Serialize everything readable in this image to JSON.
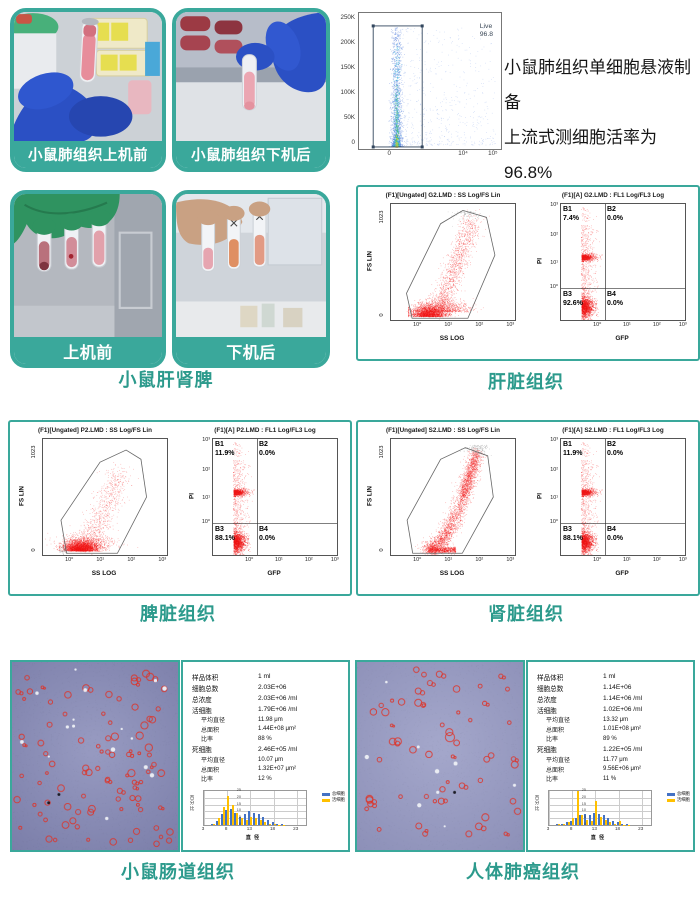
{
  "colors": {
    "teal": "#3aa89b",
    "caption_text": "#2c9a8c",
    "flow_red": "#f01414",
    "hist_total_blue": "#4472c4",
    "hist_live_orange": "#ffc000"
  },
  "header_row": {
    "photo_before_label": "小鼠肺组织上机前",
    "photo_after_label": "小鼠肺组织下机后",
    "note_line1": "小鼠肺组织单细胞悬液制备",
    "note_line2": "上流式测细胞活率为96.8%",
    "viability_plot": {
      "gate_name": "Live",
      "gate_value": "96.8",
      "yticks": [
        "250K",
        "200K",
        "150K",
        "100K",
        "50K",
        "0"
      ],
      "xticks": [
        "0",
        "10⁴",
        "10⁵"
      ]
    }
  },
  "organ_row": {
    "photo_before_label": "上机前",
    "photo_after_label": "下机后",
    "photos_caption": "小鼠肝肾脾"
  },
  "flow_panels": [
    {
      "caption": "肝脏组织",
      "scatter": {
        "title": "(F1)[Ungated] G2.LMD : SS Log/FS Lin",
        "ylabel": "FS LIN",
        "xlabel": "SS LOG",
        "ytop": "1023",
        "ybottom": "0",
        "xticks": [
          "10⁰",
          "10¹",
          "10²",
          "10³"
        ],
        "cloud": "liver"
      },
      "quad": {
        "title": "(F1)[A] G2.LMD : FL1 Log/FL3 Log",
        "ylabel": "PI",
        "xlabel": "GFP",
        "yticks": [
          "10³",
          "10²",
          "10¹",
          "10⁰"
        ],
        "xticks": [
          "10⁰",
          "10¹",
          "10²",
          "10³"
        ],
        "q": [
          {
            "name": "B1",
            "value": "7.4%"
          },
          {
            "name": "B2",
            "value": "0.0%"
          },
          {
            "name": "B3",
            "value": "92.6%"
          },
          {
            "name": "B4",
            "value": "0.0%"
          }
        ]
      }
    },
    {
      "caption": "脾脏组织",
      "scatter": {
        "title": "(F1)[Ungated] P2.LMD : SS Log/FS Lin",
        "ylabel": "FS LIN",
        "xlabel": "SS LOG",
        "ytop": "1023",
        "ybottom": "0",
        "xticks": [
          "10⁰",
          "10¹",
          "10²",
          "10³"
        ],
        "cloud": "spleen"
      },
      "quad": {
        "title": "(F1)[A] P2.LMD : FL1 Log/FL3 Log",
        "ylabel": "PI",
        "xlabel": "GFP",
        "yticks": [
          "10³",
          "10²",
          "10¹",
          "10⁰"
        ],
        "xticks": [
          "10⁰",
          "10¹",
          "10²",
          "10³"
        ],
        "q": [
          {
            "name": "B1",
            "value": "11.9%"
          },
          {
            "name": "B2",
            "value": "0.0%"
          },
          {
            "name": "B3",
            "value": "88.1%"
          },
          {
            "name": "B4",
            "value": "0.0%"
          }
        ]
      }
    },
    {
      "caption": "肾脏组织",
      "scatter": {
        "title": "(F1)[Ungated] S2.LMD : SS Log/FS Lin",
        "ylabel": "FS LIN",
        "xlabel": "SS LOG",
        "ytop": "1023",
        "ybottom": "0",
        "xticks": [
          "10⁰",
          "10¹",
          "10²",
          "10³"
        ],
        "cloud": "kidney"
      },
      "quad": {
        "title": "(F1)[A] S2.LMD : FL1 Log/FL3 Log",
        "ylabel": "PI",
        "xlabel": "GFP",
        "yticks": [
          "10³",
          "10²",
          "10¹",
          "10⁰"
        ],
        "xticks": [
          "10⁰",
          "10¹",
          "10²",
          "10³"
        ],
        "q": [
          {
            "name": "B1",
            "value": "11.9%"
          },
          {
            "name": "B2",
            "value": "0.0%"
          },
          {
            "name": "B3",
            "value": "88.1%"
          },
          {
            "name": "B4",
            "value": "0.0%"
          }
        ]
      }
    }
  ],
  "count_panels": [
    {
      "caption": "小鼠肠道组织",
      "micro": "intestine",
      "hist_ref": 4,
      "stats": [
        {
          "label": "样品体积",
          "value": "1 ml",
          "indent": false
        },
        {
          "label": "细胞总数",
          "value": "2.03E+06",
          "indent": false
        },
        {
          "label": "总浓度",
          "value": "2.03E+06 /ml",
          "indent": false
        },
        {
          "label": "活细胞",
          "value": "1.79E+06 /ml",
          "indent": false
        },
        {
          "label": "平均直径",
          "value": "11.98 μm",
          "indent": true
        },
        {
          "label": "总面积",
          "value": "1.44E+08 μm²",
          "indent": true
        },
        {
          "label": "比率",
          "value": "88 %",
          "indent": true
        },
        {
          "label": "死细胞",
          "value": "2.46E+05 /ml",
          "indent": false
        },
        {
          "label": "平均直径",
          "value": "10.07 μm",
          "indent": true
        },
        {
          "label": "总面积",
          "value": "1.32E+07 μm²",
          "indent": true
        },
        {
          "label": "比率",
          "value": "12 %",
          "indent": true
        }
      ]
    },
    {
      "caption": "人体肺癌组织",
      "micro": "lung",
      "hist_ref": 5,
      "stats": [
        {
          "label": "样品体积",
          "value": "1 ml",
          "indent": false
        },
        {
          "label": "细胞总数",
          "value": "1.14E+06",
          "indent": false
        },
        {
          "label": "总浓度",
          "value": "1.14E+06 /ml",
          "indent": false
        },
        {
          "label": "活细胞",
          "value": "1.02E+06 /ml",
          "indent": false
        },
        {
          "label": "平均直径",
          "value": "13.32 μm",
          "indent": true
        },
        {
          "label": "总面积",
          "value": "1.01E+08 μm²",
          "indent": true
        },
        {
          "label": "比率",
          "value": "89 %",
          "indent": true
        },
        {
          "label": "死细胞",
          "value": "1.22E+05 /ml",
          "indent": false
        },
        {
          "label": "平均直径",
          "value": "11.77 μm",
          "indent": true
        },
        {
          "label": "总面积",
          "value": "9.56E+06 μm²",
          "indent": true
        },
        {
          "label": "比率",
          "value": "11 %",
          "indent": true
        }
      ]
    }
  ],
  "chart_data": [
    {
      "type": "scatter",
      "id": "lung-viability",
      "gate": "Live",
      "gate_percent": 96.8,
      "yticks": [
        "250K",
        "200K",
        "150K",
        "100K",
        "50K",
        "0"
      ],
      "xticks": [
        "0",
        "1e4",
        "1e5"
      ],
      "description": "density scatter, dense column near x=0 inside rectangular Live gate"
    },
    {
      "type": "scatter",
      "id": "liver-quadrant",
      "xlabel": "GFP",
      "ylabel": "PI",
      "quadrant_percent": {
        "B1": 7.4,
        "B2": 0.0,
        "B3": 92.6,
        "B4": 0.0
      }
    },
    {
      "type": "scatter",
      "id": "spleen-quadrant",
      "xlabel": "GFP",
      "ylabel": "PI",
      "quadrant_percent": {
        "B1": 11.9,
        "B2": 0.0,
        "B3": 88.1,
        "B4": 0.0
      }
    },
    {
      "type": "scatter",
      "id": "kidney-quadrant",
      "xlabel": "GFP",
      "ylabel": "PI",
      "quadrant_percent": {
        "B1": 11.9,
        "B2": 0.0,
        "B3": 88.1,
        "B4": 0.0
      }
    },
    {
      "type": "bar",
      "id": "intestine-size-histogram",
      "xlabel": "直径",
      "ylabel": "百分比",
      "ylim": [
        0,
        25
      ],
      "xticks": [
        3,
        8,
        13,
        18,
        23
      ],
      "categories": [
        5,
        6,
        7,
        8,
        9,
        10,
        11,
        12,
        13,
        14,
        15,
        16,
        17,
        18,
        19,
        20
      ],
      "series": [
        {
          "name": "总细胞",
          "color": "#4472c4",
          "values": [
            1,
            3,
            8,
            11,
            12,
            9,
            6,
            8,
            10,
            9,
            8,
            6,
            4,
            2,
            1,
            0.5
          ]
        },
        {
          "name": "活细胞",
          "color": "#ffc000",
          "values": [
            1,
            5,
            13,
            21,
            15,
            9,
            5,
            4,
            6,
            5,
            4,
            2,
            1,
            0.5,
            0.3,
            0.2
          ]
        }
      ]
    },
    {
      "type": "bar",
      "id": "lung-cancer-size-histogram",
      "xlabel": "直径",
      "ylabel": "百分比",
      "ylim": [
        0,
        25
      ],
      "xticks": [
        3,
        8,
        13,
        18,
        23
      ],
      "categories": [
        5,
        6,
        7,
        8,
        9,
        10,
        11,
        12,
        13,
        14,
        15,
        16,
        17,
        18,
        19,
        20
      ],
      "series": [
        {
          "name": "总细胞",
          "color": "#4472c4",
          "values": [
            1,
            1,
            2,
            3,
            5,
            7,
            8,
            7,
            9,
            8,
            7,
            5,
            3,
            2,
            1,
            0.5
          ]
        },
        {
          "name": "活细胞",
          "color": "#ffc000",
          "values": [
            0.5,
            1,
            2,
            5,
            25,
            7,
            4,
            3,
            18,
            6,
            4,
            2,
            1,
            3,
            0.3,
            0.2
          ]
        }
      ]
    }
  ]
}
